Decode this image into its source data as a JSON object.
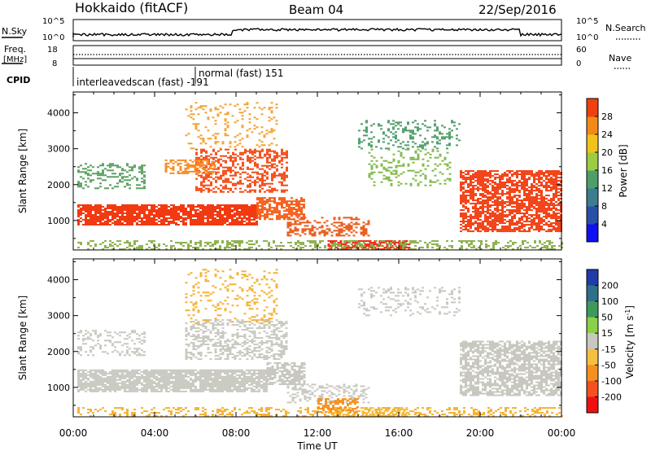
{
  "header": {
    "station": "Hokkaido (fitACF)",
    "beam": "Beam 04",
    "date": "22/Sep/2016"
  },
  "strips": {
    "nsky_label": "N.Sky",
    "nsky_ticks": [
      "10^5",
      "10^0"
    ],
    "nsearch_label": "N.Search",
    "nsearch_ticks": [
      "10^5",
      "10^0"
    ],
    "freq_label": "Freq.",
    "freq_unit": "[MHz]",
    "freq_ticks": [
      "18",
      "8"
    ],
    "nave_label": "Nave",
    "nave_ticks": [
      "60",
      "0"
    ],
    "cpid_label": "CPID",
    "cpid_entries": [
      "interleavedscan (fast) -191",
      "normal (fast) 151"
    ]
  },
  "chart_data": [
    {
      "type": "heatmap",
      "panel": "power",
      "ylabel": "Slant Range [km]",
      "xlabel": "",
      "x_ticks": [
        "00:00",
        "04:00",
        "08:00",
        "12:00",
        "16:00",
        "20:00",
        "00:00"
      ],
      "x_range_hours": [
        0,
        24
      ],
      "y_ticks": [
        "1000",
        "2000",
        "3000",
        "4000"
      ],
      "ylim": [
        180,
        4580
      ],
      "colorbar": {
        "label": "Power [dB]",
        "ticks": [
          "4",
          "8",
          "12",
          "16",
          "20",
          "24",
          "28"
        ],
        "range": [
          0,
          32
        ],
        "colors": [
          "#1010f0",
          "#2a4fa8",
          "#3d7d90",
          "#4f9e6a",
          "#9ccc40",
          "#f2c21c",
          "#f28a18",
          "#f04010"
        ]
      },
      "bands": [
        {
          "x0": 0.2,
          "x1": 9.0,
          "y0": 900,
          "y1": 1450,
          "c": "#f23a12",
          "d": 0.85
        },
        {
          "x0": 9.0,
          "x1": 11.3,
          "y0": 1050,
          "y1": 1650,
          "c": "#f55a15",
          "d": 0.75
        },
        {
          "x0": 6.0,
          "x1": 10.5,
          "y0": 1800,
          "y1": 3000,
          "c": "#f34a14",
          "d": 0.45
        },
        {
          "x0": 4.5,
          "x1": 7.0,
          "y0": 2300,
          "y1": 2700,
          "c": "#f78c22",
          "d": 0.5
        },
        {
          "x0": 0.2,
          "x1": 3.5,
          "y0": 1900,
          "y1": 2600,
          "c": "#5aa060",
          "d": 0.35
        },
        {
          "x0": 10.5,
          "x1": 14.5,
          "y0": 600,
          "y1": 1100,
          "c": "#e85a1a",
          "d": 0.45
        },
        {
          "x0": 12.5,
          "x1": 16.5,
          "y0": 180,
          "y1": 450,
          "c": "#f02a12",
          "d": 0.7
        },
        {
          "x0": 19.0,
          "x1": 24.0,
          "y0": 700,
          "y1": 2400,
          "c": "#f23e12",
          "d": 0.7
        },
        {
          "x0": 14.0,
          "x1": 19.0,
          "y0": 3000,
          "y1": 3800,
          "c": "#4f9e6a",
          "d": 0.25
        },
        {
          "x0": 14.5,
          "x1": 18.5,
          "y0": 2000,
          "y1": 3000,
          "c": "#7fb84a",
          "d": 0.2
        },
        {
          "x0": 0.2,
          "x1": 24.0,
          "y0": 180,
          "y1": 450,
          "c": "#8ab04a",
          "d": 0.35
        },
        {
          "x0": 5.5,
          "x1": 10.0,
          "y0": 3000,
          "y1": 4300,
          "c": "#f5a030",
          "d": 0.15
        }
      ]
    },
    {
      "type": "heatmap",
      "panel": "velocity",
      "ylabel": "Slant Range [km]",
      "xlabel": "Time UT",
      "x_ticks": [
        "00:00",
        "04:00",
        "08:00",
        "12:00",
        "16:00",
        "20:00",
        "00:00"
      ],
      "x_range_hours": [
        0,
        24
      ],
      "y_ticks": [
        "1000",
        "2000",
        "3000",
        "4000"
      ],
      "ylim": [
        180,
        4580
      ],
      "colorbar": {
        "label": "Velocity [m s^-1]",
        "ticks": [
          "200",
          "100",
          "50",
          "15",
          "-15",
          "-50",
          "-100",
          "-200"
        ],
        "colors": [
          "#1f3ca8",
          "#2f6f8a",
          "#3d9a5c",
          "#8ad048",
          "#c8c8c0",
          "#f5c040",
          "#f59020",
          "#f55020",
          "#f01010"
        ]
      },
      "bands": [
        {
          "x0": 0.2,
          "x1": 9.5,
          "y0": 900,
          "y1": 1500,
          "c": "#c8c8c0",
          "d": 0.85
        },
        {
          "x0": 9.5,
          "x1": 11.3,
          "y0": 1100,
          "y1": 1700,
          "c": "#c8c8c0",
          "d": 0.7
        },
        {
          "x0": 5.5,
          "x1": 10.5,
          "y0": 1800,
          "y1": 2900,
          "c": "#c8c8c0",
          "d": 0.4
        },
        {
          "x0": 0.2,
          "x1": 3.5,
          "y0": 1900,
          "y1": 2600,
          "c": "#c8c8c0",
          "d": 0.3
        },
        {
          "x0": 19.0,
          "x1": 24.0,
          "y0": 800,
          "y1": 2300,
          "c": "#c8c8c0",
          "d": 0.7
        },
        {
          "x0": 10.5,
          "x1": 14.5,
          "y0": 600,
          "y1": 1100,
          "c": "#c8c8c0",
          "d": 0.4
        },
        {
          "x0": 12.5,
          "x1": 16.5,
          "y0": 180,
          "y1": 450,
          "c": "#f5c040",
          "d": 0.5
        },
        {
          "x0": 0.2,
          "x1": 24.0,
          "y0": 180,
          "y1": 450,
          "c": "#f5b030",
          "d": 0.35
        },
        {
          "x0": 14.0,
          "x1": 19.0,
          "y0": 3000,
          "y1": 3800,
          "c": "#c8c8c0",
          "d": 0.2
        },
        {
          "x0": 5.5,
          "x1": 10.0,
          "y0": 2800,
          "y1": 4300,
          "c": "#f5b030",
          "d": 0.15
        },
        {
          "x0": 12.0,
          "x1": 14.0,
          "y0": 300,
          "y1": 700,
          "c": "#f59020",
          "d": 0.5
        }
      ]
    }
  ]
}
